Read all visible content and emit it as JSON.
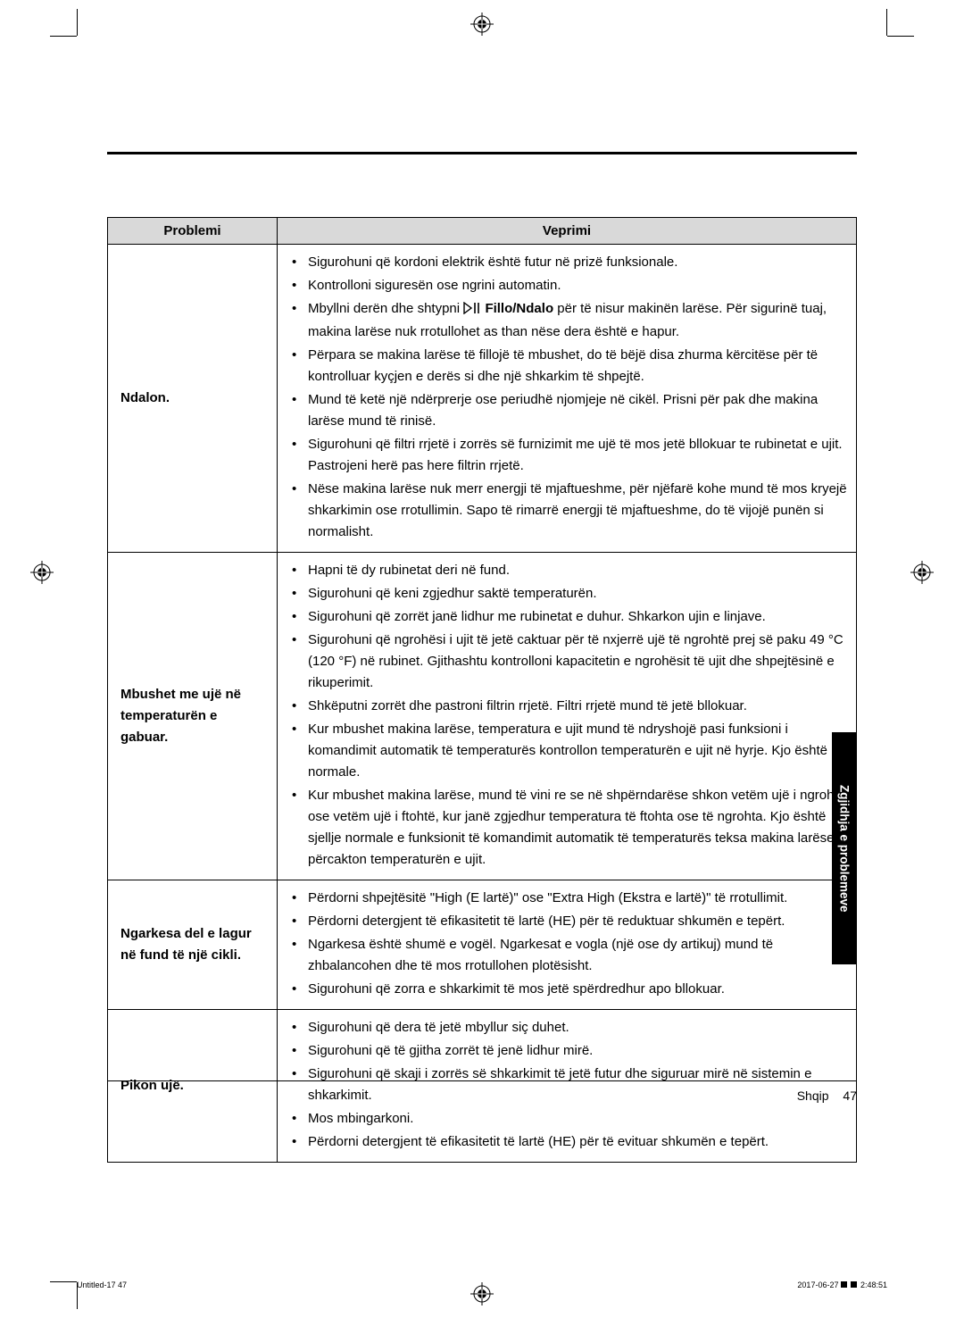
{
  "table": {
    "col_problem_width": 190,
    "headers": {
      "problem": "Problemi",
      "action": "Veprimi"
    },
    "rows": [
      {
        "label": "Ndalon.",
        "actions": [
          "Sigurohuni që kordoni elektrik është futur në prizë funksionale.",
          "Kontrolloni siguresën ose ngrini automatin.",
          {
            "before": "Mbyllni derën dhe shtypni ",
            "icon": "play-pause",
            "bold_after": "Fillo/Ndalo",
            "after": " për të nisur makinën larëse. Për sigurinë tuaj, makina larëse nuk rrotullohet as than nëse dera është e hapur."
          },
          "Përpara se makina larëse të fillojë të mbushet, do të bëjë disa zhurma kërcitëse për të kontrolluar kyçjen e derës si dhe një shkarkim të shpejtë.",
          "Mund të ketë një ndërprerje ose periudhë njomjeje në cikël. Prisni për pak dhe makina larëse mund të rinisë.",
          "Sigurohuni që filtri rrjetë i zorrës së furnizimit me ujë të mos jetë bllokuar te rubinetat e ujit. Pastrojeni herë pas here filtrin rrjetë.",
          "Nëse makina larëse nuk merr energji të mjaftueshme, për njëfarë kohe mund të mos kryejë shkarkimin ose rrotullimin. Sapo të rimarrë energji të mjaftueshme, do të vijojë punën si normalisht."
        ]
      },
      {
        "label": "Mbushet me ujë në temperaturën e gabuar.",
        "actions": [
          "Hapni të dy rubinetat deri në fund.",
          "Sigurohuni që keni zgjedhur saktë temperaturën.",
          "Sigurohuni që zorrët janë lidhur me rubinetat e duhur. Shkarkon ujin e linjave.",
          "Sigurohuni që ngrohësi i ujit të jetë caktuar për të nxjerrë ujë të ngrohtë prej së paku 49 °C (120 °F) në rubinet. Gjithashtu kontrolloni kapacitetin e ngrohësit të ujit dhe shpejtësinë e rikuperimit.",
          "Shkëputni zorrët dhe pastroni filtrin rrjetë. Filtri rrjetë mund të jetë bllokuar.",
          "Kur mbushet makina larëse, temperatura e ujit mund të ndryshojë pasi funksioni i komandimit automatik të temperaturës kontrollon temperaturën e ujit në hyrje. Kjo është normale.",
          "Kur mbushet makina larëse, mund të vini re se në shpërndarëse shkon vetëm ujë i ngrohtë ose vetëm ujë i ftohtë, kur janë zgjedhur temperatura të ftohta ose të ngrohta. Kjo është sjellje normale e funksionit të komandimit automatik të temperaturës teksa makina larëse përcakton temperaturën e ujit."
        ]
      },
      {
        "label": "Ngarkesa del e lagur në fund të një cikli.",
        "actions": [
          "Përdorni shpejtësitë \"High (E lartë)\" ose \"Extra High (Ekstra e lartë)\" të rrotullimit.",
          "Përdorni detergjent të efikasitetit të lartë (HE) për të reduktuar shkumën e tepërt.",
          "Ngarkesa është shumë e vogël. Ngarkesat e vogla (një ose dy artikuj) mund të zhbalancohen dhe të mos rrotullohen plotësisht.",
          "Sigurohuni që zorra e shkarkimit të mos jetë spërdredhur apo bllokuar."
        ]
      },
      {
        "label": "Pikon ujë.",
        "actions": [
          "Sigurohuni që dera të jetë mbyllur siç duhet.",
          "Sigurohuni që të gjitha zorrët të jenë lidhur mirë.",
          "Sigurohuni që skaji i zorrës së shkarkimit të jetë futur dhe siguruar mirë në sistemin e shkarkimit.",
          "Mos mbingarkoni.",
          "Përdorni detergjent të efikasitetit të lartë (HE) për të evituar shkumën e tepërt."
        ]
      }
    ]
  },
  "side_tab": "Zgjidhja e problemeve",
  "footer": {
    "language": "Shqip",
    "page": "47"
  },
  "slug": {
    "left": "Untitled-17   47",
    "right_prefix": "2017-06-27   ",
    "right_time": "2:48:51"
  },
  "colors": {
    "header_bg": "#d9d9d9",
    "border": "#000000",
    "tab_bg": "#000000",
    "tab_fg": "#ffffff"
  }
}
